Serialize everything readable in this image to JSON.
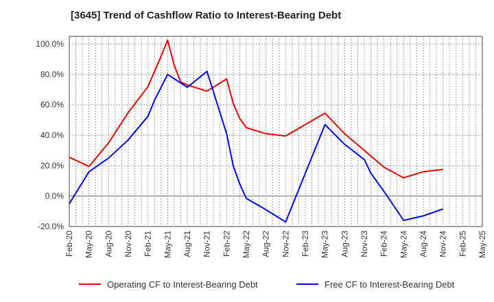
{
  "chart_data": {
    "type": "line",
    "title": "[3645]  Trend of Cashflow Ratio to Interest-Bearing Debt",
    "xlabel": "",
    "ylabel": "",
    "x_tick_labels": [
      "Feb-20",
      "May-20",
      "Aug-20",
      "Nov-20",
      "Feb-21",
      "May-21",
      "Aug-21",
      "Nov-21",
      "Feb-22",
      "May-22",
      "Aug-22",
      "Nov-22",
      "Feb-23",
      "May-23",
      "Aug-23",
      "Nov-23",
      "Feb-24",
      "May-24",
      "Aug-24",
      "Nov-24",
      "Feb-25",
      "May-25"
    ],
    "y_tick_labels": [
      "100.0%",
      "80.0%",
      "60.0%",
      "40.0%",
      "20.0%",
      "0.0%",
      "-20.0%"
    ],
    "y_tick_values": [
      100,
      80,
      60,
      40,
      20,
      0,
      -20
    ],
    "ylim": [
      -20,
      105
    ],
    "grid": true,
    "legend_position": "bottom",
    "series": [
      {
        "name": "Operating CF to Interest-Bearing Debt",
        "color": "#e00000",
        "points": [
          [
            "Feb-20",
            25.5
          ],
          [
            "May-20",
            19.5
          ],
          [
            "Aug-20",
            35
          ],
          [
            "Nov-20",
            55
          ],
          [
            "Feb-21",
            72
          ],
          [
            "Apr-21",
            92
          ],
          [
            "May-21",
            102.5
          ],
          [
            "Jun-21",
            86
          ],
          [
            "Jul-21",
            75
          ],
          [
            "Aug-21",
            73
          ],
          [
            "Nov-21",
            69
          ],
          [
            "Feb-22",
            77
          ],
          [
            "Mar-22",
            61
          ],
          [
            "Apr-22",
            51
          ],
          [
            "May-22",
            45
          ],
          [
            "Aug-22",
            41
          ],
          [
            "Nov-22",
            39.5
          ],
          [
            "Feb-23",
            47
          ],
          [
            "May-23",
            54.5
          ],
          [
            "Aug-23",
            41
          ],
          [
            "Nov-23",
            30
          ],
          [
            "Feb-24",
            19
          ],
          [
            "May-24",
            12
          ],
          [
            "Aug-24",
            16
          ],
          [
            "Nov-24",
            17.5
          ]
        ]
      },
      {
        "name": "Free CF to Interest-Bearing Debt",
        "color": "#0000e0",
        "points": [
          [
            "Feb-20",
            -5
          ],
          [
            "May-20",
            16
          ],
          [
            "Aug-20",
            25
          ],
          [
            "Nov-20",
            37
          ],
          [
            "Feb-21",
            52.5
          ],
          [
            "Mar-21",
            63
          ],
          [
            "May-21",
            80
          ],
          [
            "Aug-21",
            71.5
          ],
          [
            "Nov-21",
            82
          ],
          [
            "Feb-22",
            41
          ],
          [
            "Mar-22",
            20
          ],
          [
            "Apr-22",
            8
          ],
          [
            "May-22",
            -1.5
          ],
          [
            "Aug-22",
            -9
          ],
          [
            "Nov-22",
            -17
          ],
          [
            "Feb-23",
            15
          ],
          [
            "May-23",
            47
          ],
          [
            "Aug-23",
            34
          ],
          [
            "Nov-23",
            24
          ],
          [
            "Dec-23",
            15
          ],
          [
            "Feb-24",
            3
          ],
          [
            "May-24",
            -16
          ],
          [
            "Aug-24",
            -13
          ],
          [
            "Nov-24",
            -8.5
          ]
        ]
      }
    ]
  }
}
